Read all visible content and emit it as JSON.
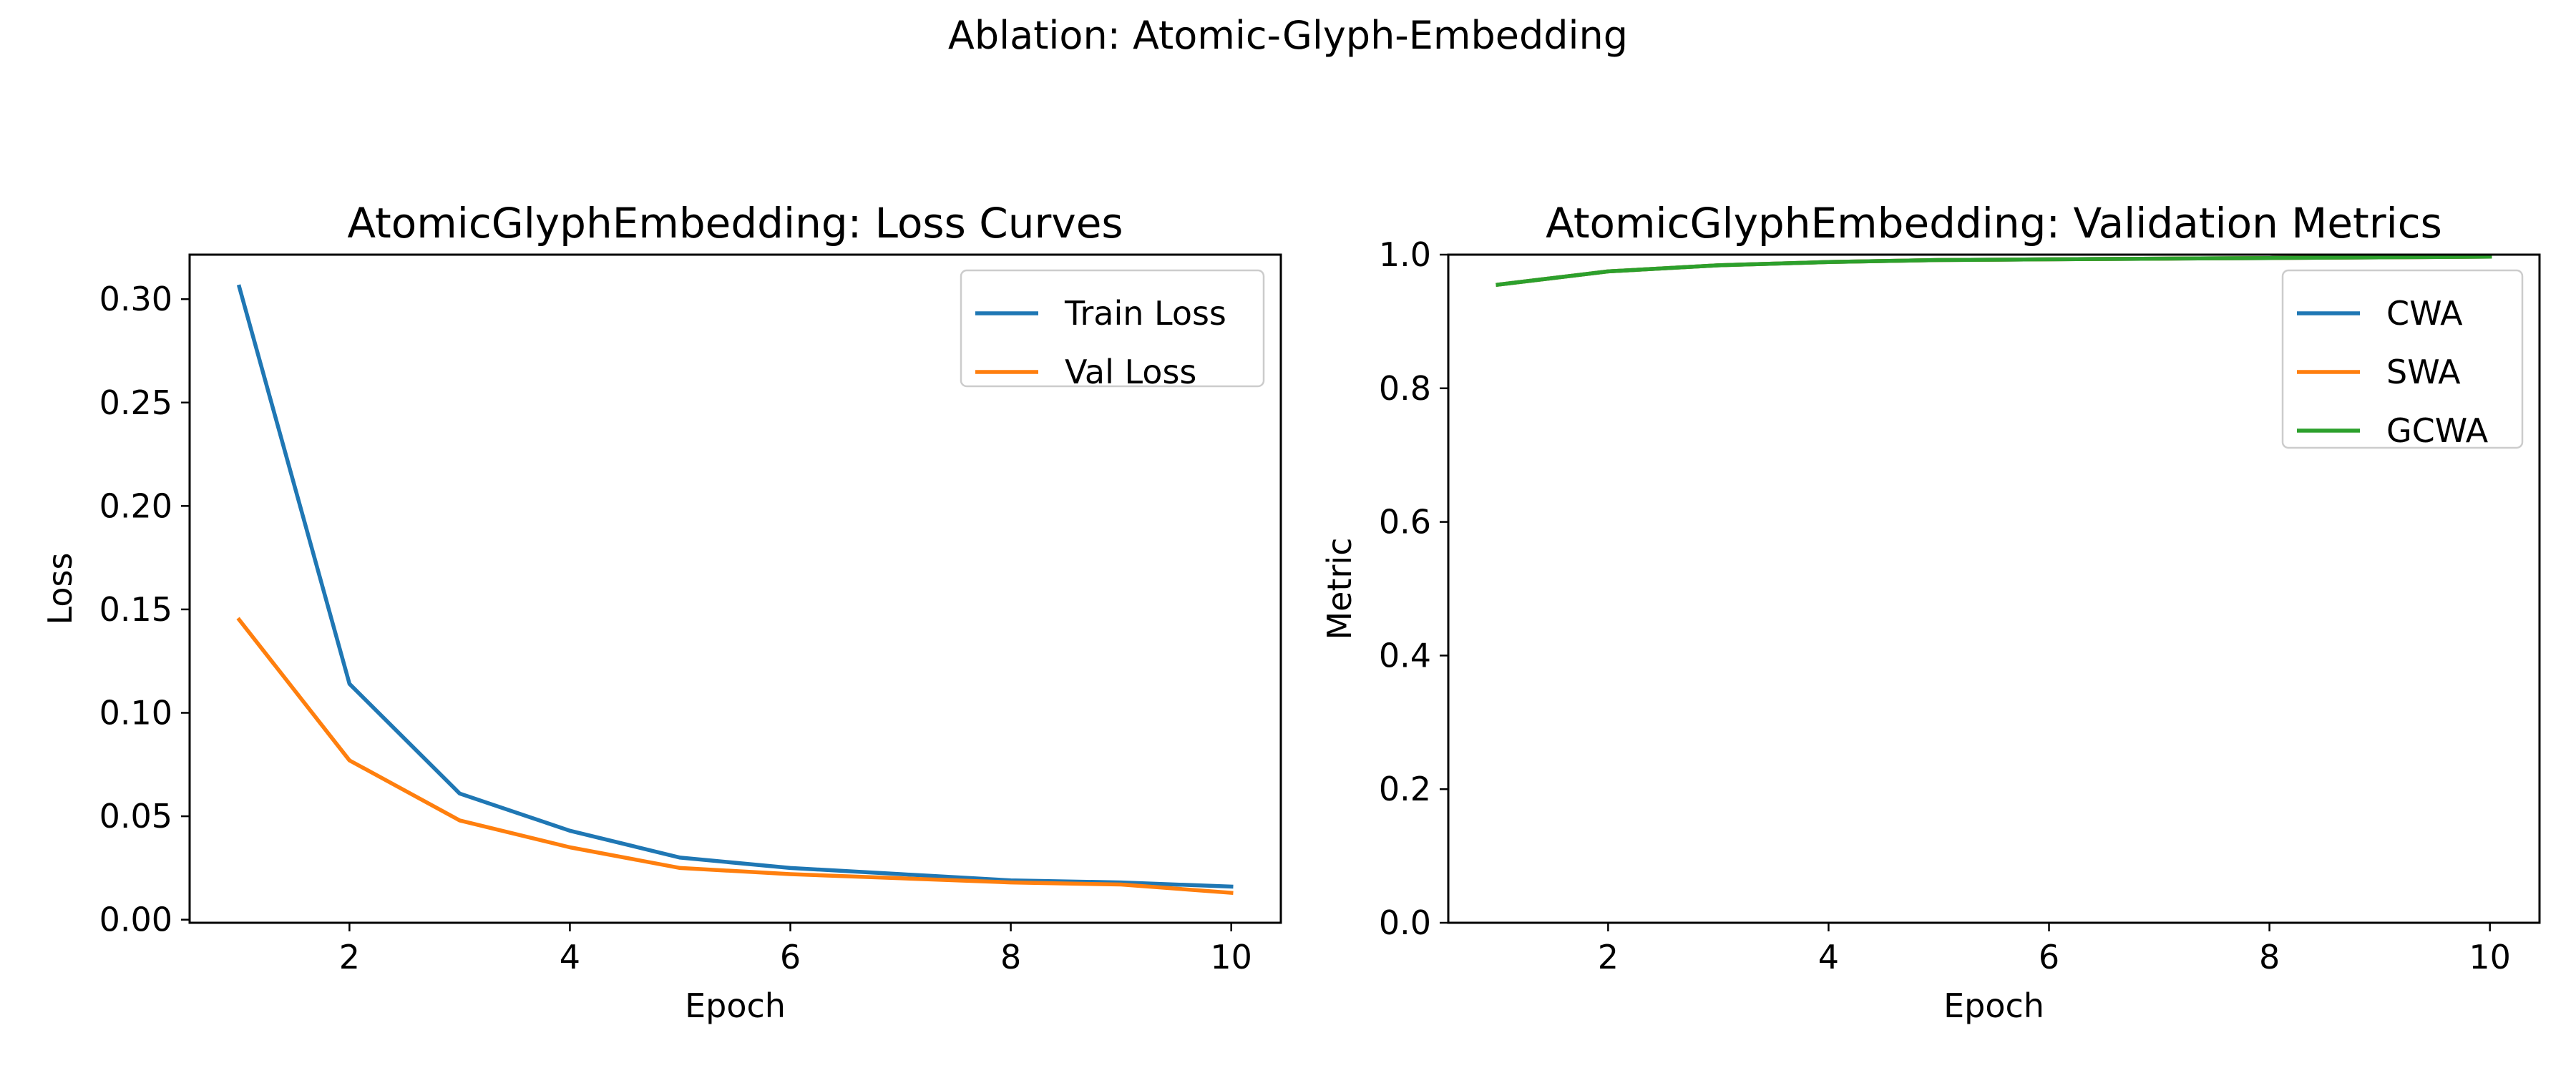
{
  "figure": {
    "suptitle": "Ablation: Atomic-Glyph-Embedding"
  },
  "colors": {
    "blue": "#1f77b4",
    "orange": "#ff7f0e",
    "green": "#2ca02c"
  },
  "chart_data": [
    {
      "type": "line",
      "title": "AtomicGlyphEmbedding: Loss Curves",
      "xlabel": "Epoch",
      "ylabel": "Loss",
      "xlim": [
        0.55,
        10.45
      ],
      "ylim": [
        -0.0015,
        0.3215
      ],
      "xticks": [
        2,
        4,
        6,
        8,
        10
      ],
      "yticks": [
        0.0,
        0.05,
        0.1,
        0.15,
        0.2,
        0.25,
        0.3
      ],
      "ytick_labels": [
        "0.00",
        "0.05",
        "0.10",
        "0.15",
        "0.20",
        "0.25",
        "0.30"
      ],
      "grid": false,
      "legend": "upper right",
      "x": [
        1,
        2,
        3,
        4,
        5,
        6,
        7,
        8,
        9,
        10
      ],
      "series": [
        {
          "name": "Train Loss",
          "color": "#1f77b4",
          "values": [
            0.306,
            0.114,
            0.061,
            0.043,
            0.03,
            0.025,
            0.022,
            0.019,
            0.018,
            0.016
          ]
        },
        {
          "name": "Val Loss",
          "color": "#ff7f0e",
          "values": [
            0.145,
            0.077,
            0.048,
            0.035,
            0.025,
            0.022,
            0.02,
            0.018,
            0.017,
            0.013
          ]
        }
      ]
    },
    {
      "type": "line",
      "title": "AtomicGlyphEmbedding: Validation Metrics",
      "xlabel": "Epoch",
      "ylabel": "Metric",
      "xlim": [
        0.55,
        10.45
      ],
      "ylim": [
        0.0,
        1.0
      ],
      "xticks": [
        2,
        4,
        6,
        8,
        10
      ],
      "yticks": [
        0.0,
        0.2,
        0.4,
        0.6,
        0.8,
        1.0
      ],
      "ytick_labels": [
        "0.0",
        "0.2",
        "0.4",
        "0.6",
        "0.8",
        "1.0"
      ],
      "grid": false,
      "legend": "upper right",
      "x": [
        1,
        2,
        3,
        4,
        5,
        6,
        7,
        8,
        9,
        10
      ],
      "series": [
        {
          "name": "CWA",
          "color": "#1f77b4",
          "values": [
            0.955,
            0.975,
            0.984,
            0.989,
            0.992,
            0.993,
            0.994,
            0.995,
            0.996,
            0.997
          ]
        },
        {
          "name": "SWA",
          "color": "#ff7f0e",
          "values": [
            0.955,
            0.975,
            0.984,
            0.989,
            0.992,
            0.993,
            0.994,
            0.995,
            0.996,
            0.997
          ]
        },
        {
          "name": "GCWA",
          "color": "#2ca02c",
          "values": [
            0.955,
            0.975,
            0.984,
            0.989,
            0.992,
            0.993,
            0.994,
            0.995,
            0.996,
            0.997
          ]
        }
      ]
    }
  ]
}
